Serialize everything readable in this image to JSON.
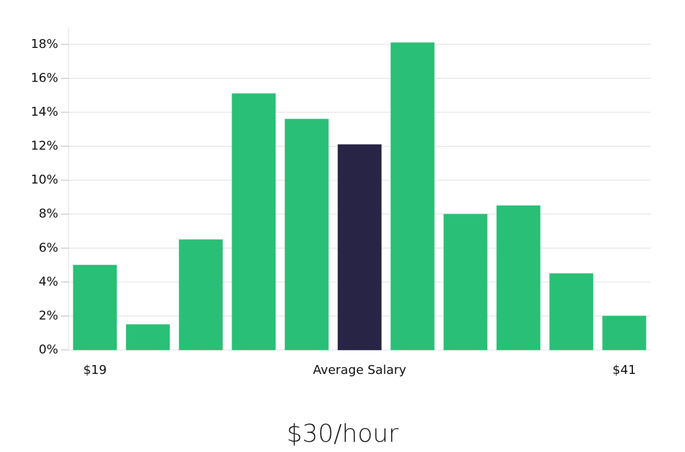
{
  "chart_data": {
    "type": "bar",
    "title": "$30/hour",
    "categories": [
      "$19",
      null,
      null,
      null,
      null,
      "Average Salary",
      null,
      null,
      null,
      null,
      "$41"
    ],
    "values": [
      5,
      1.5,
      6.5,
      15.1,
      13.6,
      12.1,
      18.1,
      8,
      8.5,
      4.5,
      2
    ],
    "colors": [
      "#2abf76",
      "#2abf76",
      "#2abf76",
      "#2abf76",
      "#2abf76",
      "#272445",
      "#2abf76",
      "#2abf76",
      "#2abf76",
      "#2abf76",
      "#2abf76"
    ],
    "ylim": [
      0,
      19
    ],
    "yticks": [
      {
        "value": 0,
        "label": "0%"
      },
      {
        "value": 2,
        "label": "2%"
      },
      {
        "value": 4,
        "label": "4%"
      },
      {
        "value": 6,
        "label": "6%"
      },
      {
        "value": 8,
        "label": "8%"
      },
      {
        "value": 10,
        "label": "10%"
      },
      {
        "value": 12,
        "label": "12%"
      },
      {
        "value": 14,
        "label": "14%"
      },
      {
        "value": 16,
        "label": "16%"
      },
      {
        "value": 18,
        "label": "18%"
      }
    ],
    "grid": true
  }
}
